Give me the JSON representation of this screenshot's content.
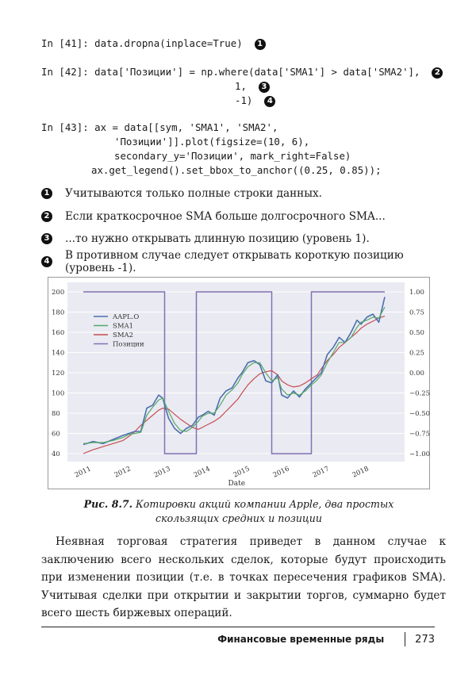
{
  "code": {
    "cells": [
      {
        "prompt": "In [41]:",
        "lines": [
          "data.dropna(inplace=True)"
        ],
        "callouts": [
          "1"
        ]
      },
      {
        "prompt": "In [42]:",
        "lines": [
          "data['Позиции'] = np.where(data['SMA1'] > data['SMA2'],",
          "1,",
          "-1)"
        ],
        "callouts": [
          "2",
          "3",
          "4"
        ]
      },
      {
        "prompt": "In [43]:",
        "lines": [
          "ax = data[[sym, 'SMA1', 'SMA2',",
          "'Позиции']].plot(figsize=(10, 6),",
          "secondary_y='Позиции', mark_right=False)",
          "ax.get_legend().set_bbox_to_anchor((0.25, 0.85));"
        ]
      }
    ]
  },
  "notes": [
    {
      "marker": "1",
      "text": "Учитываются только полные строки данных."
    },
    {
      "marker": "2",
      "text": "Если краткосрочное SMA больше долгосрочного SMA..."
    },
    {
      "marker": "3",
      "text": "...то нужно открывать длинную позицию (уровень 1)."
    },
    {
      "marker": "4",
      "text": "В противном случае следует открывать короткую позицию (уровень -1)."
    }
  ],
  "caption": {
    "label": "Рис. 8.7.",
    "line1": " Котировки акций компании Apple, два простых",
    "line2": "скользящих средних и позиции"
  },
  "paragraph": "Неявная торговая стратегия приведет в данном случае к заключению всего нескольких сделок, которые будут происходить при изменении позиции (т.е. в точках пересечения графиков SMA). Учитывая сделки при открытии и закрытии торгов, суммарно будет всего шесть биржевых операций.",
  "footer": {
    "section": "Финансовые временные ряды",
    "page": "273"
  },
  "chart_data": {
    "type": "line",
    "title": "",
    "xlabel": "Date",
    "ylabel": "",
    "x_ticks": [
      "2011",
      "2012",
      "2013",
      "2014",
      "2015",
      "2016",
      "2017",
      "2018"
    ],
    "y_ticks": [
      40,
      60,
      80,
      100,
      120,
      140,
      160,
      180,
      200
    ],
    "y2_ticks": [
      "1.00",
      "0.75",
      "0.50",
      "0.25",
      "0.00",
      "−0.25",
      "−0.50",
      "−0.75",
      "−1.00"
    ],
    "ylim": [
      32,
      203
    ],
    "y2lim": [
      -1.05,
      1.1
    ],
    "grid": true,
    "legend_position": "upper left (bbox 0.25, 0.85)",
    "legend": [
      "AAPL.O",
      "SMA1",
      "SMA2",
      "Позиции"
    ],
    "colors": {
      "AAPL.O": "#4c6fad",
      "SMA1": "#55a868",
      "SMA2": "#c44e52",
      "Позиции": "#8172b2",
      "plot_bg": "#eaeaf2",
      "grid": "#ffffff"
    },
    "x": [
      2011.0,
      2011.25,
      2011.5,
      2011.75,
      2012.0,
      2012.15,
      2012.3,
      2012.45,
      2012.6,
      2012.75,
      2012.9,
      2013.0,
      2013.15,
      2013.3,
      2013.45,
      2013.6,
      2013.75,
      2013.9,
      2014.0,
      2014.15,
      2014.3,
      2014.45,
      2014.6,
      2014.75,
      2014.9,
      2015.0,
      2015.15,
      2015.3,
      2015.45,
      2015.6,
      2015.75,
      2015.9,
      2016.0,
      2016.15,
      2016.3,
      2016.45,
      2016.6,
      2016.75,
      2016.9,
      2017.0,
      2017.15,
      2017.3,
      2017.45,
      2017.6,
      2017.75,
      2017.9,
      2018.0,
      2018.15,
      2018.3,
      2018.45,
      2018.6
    ],
    "series": [
      {
        "name": "AAPL.O",
        "values": [
          49,
          52,
          50,
          54,
          58,
          60,
          62,
          62,
          85,
          88,
          98,
          95,
          75,
          65,
          60,
          65,
          68,
          76,
          78,
          82,
          78,
          95,
          102,
          105,
          115,
          120,
          130,
          132,
          128,
          112,
          110,
          118,
          98,
          95,
          102,
          96,
          104,
          110,
          116,
          120,
          138,
          145,
          155,
          150,
          160,
          172,
          168,
          175,
          178,
          170,
          195
        ]
      },
      {
        "name": "SMA1",
        "values": [
          50,
          51,
          51,
          53,
          56,
          59,
          60,
          61,
          78,
          86,
          93,
          95,
          82,
          70,
          63,
          62,
          66,
          72,
          77,
          80,
          80,
          88,
          98,
          103,
          110,
          118,
          126,
          130,
          130,
          120,
          112,
          115,
          104,
          98,
          100,
          98,
          102,
          108,
          113,
          118,
          130,
          140,
          150,
          150,
          155,
          165,
          170,
          172,
          175,
          174,
          185
        ]
      },
      {
        "name": "SMA2",
        "values": [
          40,
          44,
          47,
          50,
          53,
          57,
          62,
          68,
          73,
          78,
          83,
          85,
          84,
          79,
          74,
          70,
          66,
          64,
          66,
          69,
          72,
          76,
          82,
          88,
          94,
          100,
          108,
          114,
          119,
          121,
          122,
          118,
          112,
          108,
          106,
          107,
          110,
          114,
          118,
          124,
          132,
          138,
          145,
          150,
          155,
          160,
          164,
          168,
          171,
          174,
          176
        ]
      },
      {
        "name": "Позиции",
        "segments": [
          {
            "from": 2011.0,
            "to": 2013.05,
            "value": 1
          },
          {
            "from": 2013.05,
            "to": 2013.85,
            "value": -1
          },
          {
            "from": 2013.85,
            "to": 2015.75,
            "value": 1
          },
          {
            "from": 2015.75,
            "to": 2016.75,
            "value": -1
          },
          {
            "from": 2016.75,
            "to": 2018.6,
            "value": 1
          }
        ]
      }
    ]
  }
}
